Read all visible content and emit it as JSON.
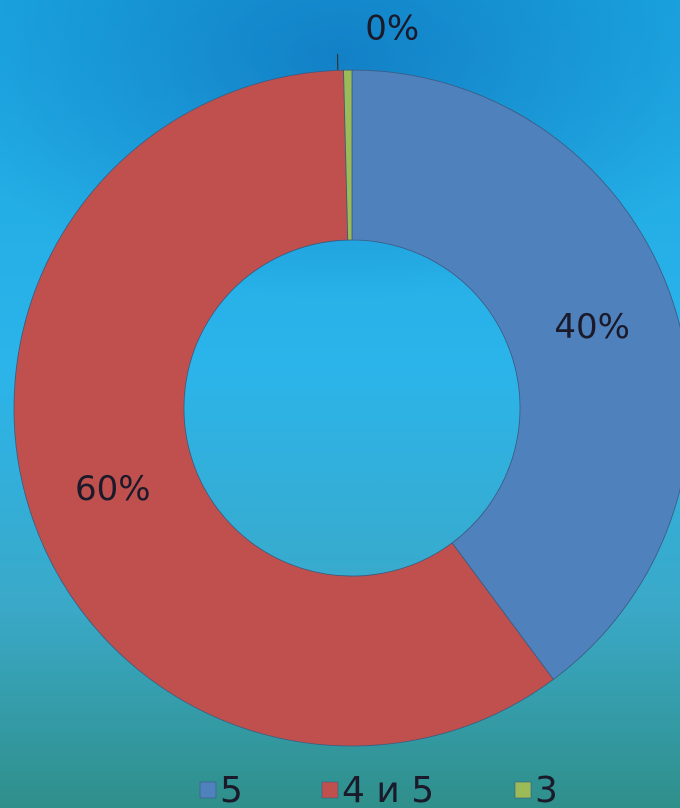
{
  "chart_data": {
    "type": "donut",
    "categories": [
      "5",
      "4 и 5",
      "3"
    ],
    "values": [
      40,
      60,
      0.4
    ],
    "value_labels": [
      "40%",
      "60%",
      "0%"
    ],
    "colors": [
      "#4f81bd",
      "#c0504d",
      "#9bbb59"
    ],
    "legend": "bottom"
  }
}
